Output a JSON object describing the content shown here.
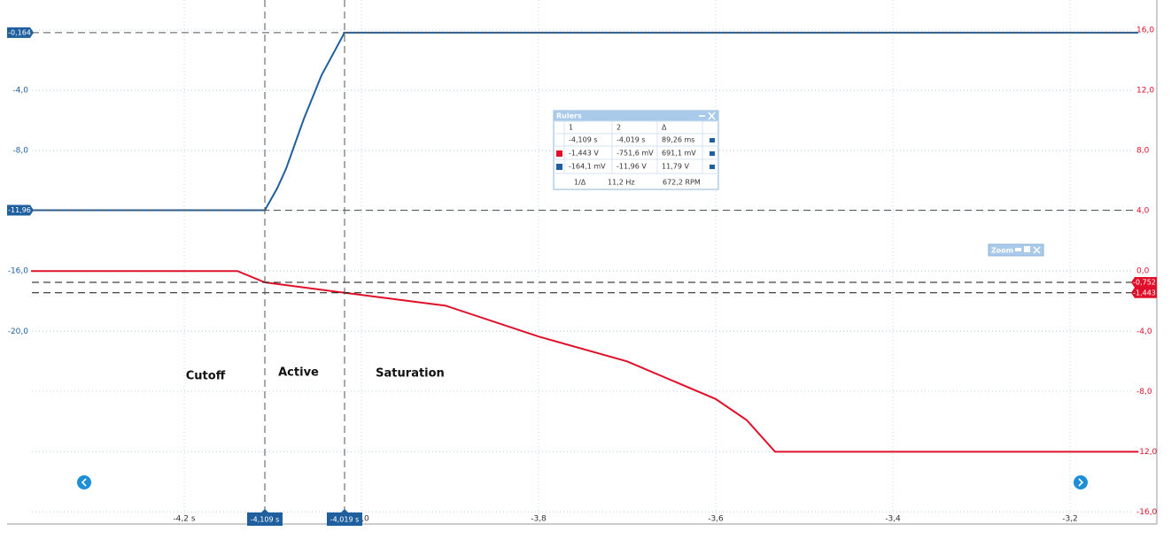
{
  "chart_data": {
    "type": "line",
    "xlim": [
      -4.4,
      -3.1
    ],
    "xticks": [
      {
        "value": -4.2,
        "label": "-4,2 s"
      },
      {
        "value": -4.0,
        "label": "-4,0"
      },
      {
        "value": -3.8,
        "label": "-3,8"
      },
      {
        "value": -3.6,
        "label": "-3,6"
      },
      {
        "value": -3.4,
        "label": "-3,4"
      },
      {
        "value": -3.2,
        "label": "-3,2"
      }
    ],
    "ylim": [
      -32.8,
      2
    ],
    "yticks": [
      {
        "value": -4,
        "label": "-4,0"
      },
      {
        "value": -8,
        "label": "-8,0"
      },
      {
        "value": -16,
        "label": "-16,0"
      },
      {
        "value": -20,
        "label": "-20,0"
      }
    ],
    "y2lim": [
      -16.8,
      18
    ],
    "y2ticks": [
      {
        "value": 16,
        "label": "16,0"
      },
      {
        "value": 12,
        "label": "12,0"
      },
      {
        "value": 8,
        "label": "8,0"
      },
      {
        "value": 4,
        "label": "4,0"
      },
      {
        "value": 0,
        "label": "0,0"
      },
      {
        "value": -4,
        "label": "-4,0"
      },
      {
        "value": -8,
        "label": "-8,0"
      },
      {
        "value": -12,
        "label": "-12,0"
      },
      {
        "value": -16,
        "label": "-16,0"
      }
    ],
    "grid": true,
    "series": [
      {
        "color": "#1f5f9e",
        "axis": "y",
        "x": [
          -4.373,
          -4.109,
          -4.095,
          -4.085,
          -4.065,
          -4.045,
          -4.019,
          -3.123
        ],
        "values": [
          -11.96,
          -11.96,
          -10.5,
          -9.2,
          -5.9,
          -3.0,
          -0.164,
          -0.164
        ]
      },
      {
        "color": "#e0102a",
        "axis": "y2",
        "x": [
          -4.373,
          -4.14,
          -4.109,
          -4.019,
          -3.905,
          -3.8,
          -3.7,
          -3.6,
          -3.565,
          -3.533,
          -3.123
        ],
        "values": [
          0,
          0,
          -0.752,
          -1.443,
          -2.3,
          -4.35,
          -6.0,
          -8.5,
          -9.9,
          -12.0,
          -12.0
        ]
      }
    ],
    "x_rulers": [
      {
        "value": -4.109,
        "label": "-4,109 s"
      },
      {
        "value": -4.019,
        "label": "-4,019 s"
      }
    ],
    "y_rulers": [
      {
        "value": -0.164,
        "label": "-0,164"
      },
      {
        "value": -11.96,
        "label": "-11,96"
      }
    ],
    "y2_rulers": [
      {
        "value": -0.752,
        "label": "-0,752"
      },
      {
        "value": -1.443,
        "label": "-1,443"
      }
    ],
    "annotations": [
      "Cutoff",
      "Active",
      "Saturation"
    ]
  },
  "rulers_panel": {
    "title": "Rulers",
    "header": [
      "1",
      "2",
      "Δ"
    ],
    "rows": [
      [
        "-4,109 s",
        "-4,019 s",
        "89,26 ms"
      ],
      [
        "-1,443 V",
        "-751,6 mV",
        "691,1 mV"
      ],
      [
        "-164,1 mV",
        "-11,96 V",
        "11,79 V"
      ],
      [
        "1/Δ",
        "11,2 Hz",
        "672,2 RPM"
      ]
    ]
  },
  "zoom_panel": {
    "title": "Zoom"
  }
}
